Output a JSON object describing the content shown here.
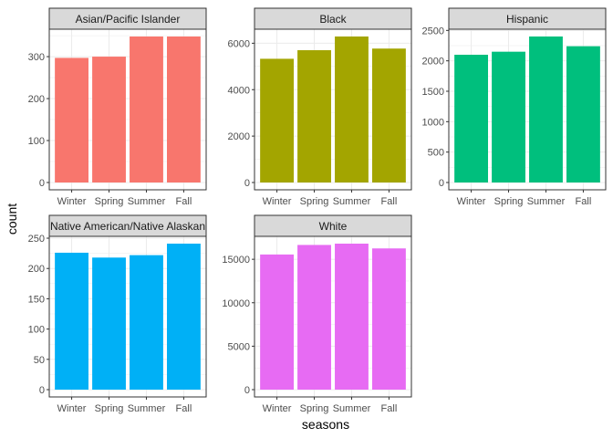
{
  "chart_data": {
    "type": "bar",
    "xlabel": "seasons",
    "ylabel": "count",
    "categories": [
      "Winter",
      "Spring",
      "Summer",
      "Fall"
    ],
    "grid": true,
    "legend": "none",
    "panels": [
      {
        "name": "Asian/Pacific Islander",
        "color": "#F8766D",
        "values": [
          297,
          300,
          348,
          348
        ],
        "ylim": [
          -17.4,
          365.4
        ],
        "yticks": [
          0,
          100,
          200,
          300
        ],
        "ytick_labels": [
          "0",
          "100",
          "200",
          "300"
        ]
      },
      {
        "name": "Black",
        "color": "#A3A500",
        "values": [
          5330,
          5700,
          6290,
          5770
        ],
        "ylim": [
          -314.5,
          6604.5
        ],
        "yticks": [
          0,
          2000,
          4000,
          6000
        ],
        "ytick_labels": [
          "0",
          "2000",
          "4000",
          "6000"
        ]
      },
      {
        "name": "Hispanic",
        "color": "#00BF7D",
        "values": [
          2100,
          2150,
          2400,
          2240
        ],
        "ylim": [
          -120,
          2520
        ],
        "yticks": [
          0,
          500,
          1000,
          1500,
          2000,
          2500
        ],
        "ytick_labels": [
          "0",
          "500",
          "1000",
          "1500",
          "2000",
          "2500"
        ]
      },
      {
        "name": "Native American/Native Alaskan",
        "color": "#00B0F6",
        "values": [
          226,
          218,
          222,
          241
        ],
        "ylim": [
          -12.05,
          253.05
        ],
        "yticks": [
          0,
          50,
          100,
          150,
          200,
          250
        ],
        "ytick_labels": [
          "0",
          "50",
          "100",
          "150",
          "200",
          "250"
        ]
      },
      {
        "name": "White",
        "color": "#E76BF3",
        "values": [
          15550,
          16650,
          16800,
          16250
        ],
        "ylim": [
          -840,
          17640
        ],
        "yticks": [
          0,
          5000,
          10000,
          15000
        ],
        "ytick_labels": [
          "0",
          "5000",
          "10000",
          "15000"
        ]
      }
    ]
  }
}
